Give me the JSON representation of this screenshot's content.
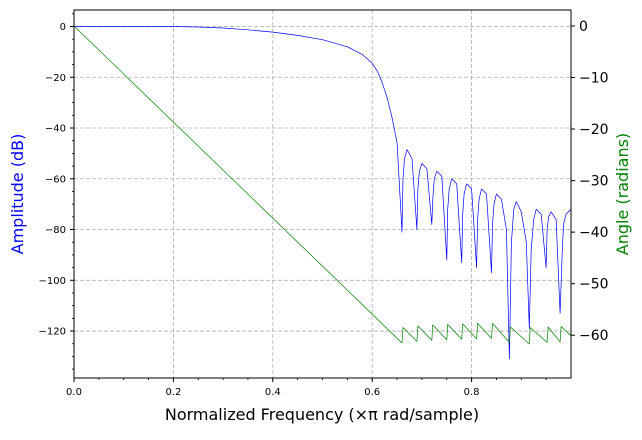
{
  "chart_data": {
    "type": "line",
    "xlabel": "Normalized Frequency (×π rad/sample)",
    "ylabel_left": "Amplitude (dB)",
    "ylabel_right": "Angle (radians)",
    "xlim": [
      0,
      1.0
    ],
    "ylim_left": [
      -138.5,
      6.5
    ],
    "ylim_right": [
      -68.3,
      3.1
    ],
    "xticks": [
      0.0,
      0.2,
      0.4,
      0.6,
      0.8
    ],
    "xtick_labels": [
      "0.0",
      "0.2",
      "0.4",
      "0.6",
      "0.8"
    ],
    "yticks_left": [
      0,
      -20,
      -40,
      -60,
      -80,
      -100,
      -120
    ],
    "ytick_labels_left": [
      "0",
      "−20",
      "−40",
      "−60",
      "−80",
      "−100",
      "−120"
    ],
    "yticks_right": [
      0,
      -10,
      -20,
      -30,
      -40,
      -50,
      -60
    ],
    "ytick_labels_right": [
      "0",
      "−10",
      "−20",
      "−30",
      "−40",
      "−50",
      "−60"
    ],
    "grid": true,
    "colors": {
      "amplitude": "#0000ff",
      "angle": "#008000",
      "grid": "#b0b0b0"
    },
    "series": [
      {
        "name": "Amplitude (dB)",
        "axis": "left",
        "color": "#0000ff",
        "x": [
          0.0,
          0.1,
          0.2,
          0.25,
          0.3,
          0.35,
          0.4,
          0.45,
          0.5,
          0.55,
          0.58,
          0.6,
          0.61,
          0.62,
          0.63,
          0.64,
          0.65,
          0.66,
          0.662,
          0.665,
          0.67,
          0.68,
          0.69,
          0.692,
          0.695,
          0.7,
          0.71,
          0.72,
          0.722,
          0.725,
          0.73,
          0.74,
          0.75,
          0.752,
          0.755,
          0.76,
          0.77,
          0.78,
          0.782,
          0.785,
          0.79,
          0.8,
          0.81,
          0.812,
          0.815,
          0.82,
          0.83,
          0.84,
          0.842,
          0.845,
          0.85,
          0.86,
          0.87,
          0.876,
          0.88,
          0.885,
          0.89,
          0.9,
          0.91,
          0.916,
          0.92,
          0.925,
          0.93,
          0.94,
          0.95,
          0.952,
          0.955,
          0.96,
          0.97,
          0.978,
          0.982,
          0.985,
          0.99,
          1.0
        ],
        "values": [
          0,
          0,
          0,
          -0.2,
          -0.6,
          -1.3,
          -2.2,
          -3.5,
          -5.2,
          -8.0,
          -11.0,
          -14.5,
          -17.5,
          -22.0,
          -28.0,
          -36.0,
          -46.0,
          -81.0,
          -60.0,
          -52.0,
          -48.5,
          -52.0,
          -80.0,
          -64.0,
          -57.0,
          -54.0,
          -56.0,
          -78.0,
          -68.0,
          -60.0,
          -57.0,
          -59.0,
          -92.0,
          -72.0,
          -64.0,
          -60.0,
          -62.0,
          -93.0,
          -74.0,
          -66.0,
          -62.0,
          -64.0,
          -95.0,
          -76.0,
          -68.0,
          -64.0,
          -66.0,
          -97.0,
          -78.0,
          -70.0,
          -66.0,
          -68.0,
          -80.0,
          -131.0,
          -85.0,
          -72.0,
          -69.0,
          -73.0,
          -85.0,
          -119.0,
          -88.0,
          -76.0,
          -72.0,
          -74.0,
          -95.0,
          -80.0,
          -75.0,
          -73.0,
          -76.0,
          -113.0,
          -90.0,
          -78.0,
          -74.0,
          -72.0
        ]
      },
      {
        "name": "Angle (radians)",
        "axis": "right",
        "color": "#008000",
        "x": [
          0.0,
          0.66,
          0.662,
          0.69,
          0.692,
          0.72,
          0.722,
          0.75,
          0.752,
          0.78,
          0.782,
          0.81,
          0.812,
          0.84,
          0.842,
          0.876,
          0.878,
          0.916,
          0.918,
          0.952,
          0.954,
          0.978,
          0.98,
          1.0
        ],
        "values": [
          0,
          -61.5,
          -58.5,
          -61.2,
          -58.2,
          -61.0,
          -58.0,
          -60.9,
          -57.9,
          -60.8,
          -57.8,
          -60.7,
          -57.7,
          -60.6,
          -57.7,
          -61.4,
          -58.4,
          -61.7,
          -58.5,
          -61.4,
          -58.4,
          -61.3,
          -58.3,
          -60.1
        ]
      }
    ]
  }
}
